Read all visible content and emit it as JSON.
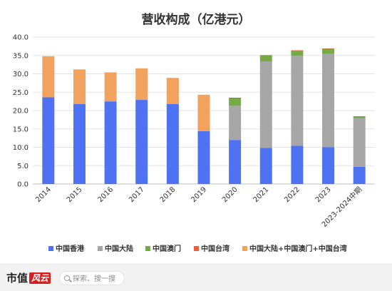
{
  "chart_data": {
    "type": "bar",
    "stacked": true,
    "title": "营收构成（亿港元）",
    "categories": [
      "2014",
      "2015",
      "2016",
      "2017",
      "2018",
      "2019",
      "2020",
      "2021",
      "2022",
      "2023",
      "2023-2024中期"
    ],
    "ylim": [
      0,
      40
    ],
    "yticks": [
      "0.0",
      "5.0",
      "10.0",
      "15.0",
      "20.0",
      "25.0",
      "30.0",
      "35.0",
      "40.0"
    ],
    "grid": true,
    "legend_position": "bottom",
    "series": [
      {
        "name": "中国香港",
        "color": "#4f72f2",
        "values": [
          23.6,
          21.8,
          22.5,
          22.9,
          21.8,
          14.4,
          12.0,
          9.8,
          10.4,
          10.0,
          4.7
        ]
      },
      {
        "name": "中国大陆",
        "color": "#a6a6a6",
        "values": [
          0,
          0,
          0,
          0,
          0,
          0,
          9.3,
          23.6,
          24.5,
          25.4,
          13.2
        ]
      },
      {
        "name": "中国澳门",
        "color": "#74ab42",
        "values": [
          0,
          0,
          0,
          0,
          0,
          0,
          2.0,
          1.6,
          1.4,
          1.4,
          0.5
        ]
      },
      {
        "name": "中国台湾",
        "color": "#ed5c34",
        "values": [
          0,
          0,
          0,
          0,
          0,
          0,
          0.2,
          0.1,
          0.1,
          0.1,
          0.05
        ]
      },
      {
        "name": "中国大陆+中国澳门+中国台湾",
        "color": "#f1a25e",
        "values": [
          11.2,
          9.4,
          7.9,
          8.6,
          7.1,
          9.9,
          0,
          0,
          0,
          0,
          0
        ]
      }
    ]
  },
  "footer": {
    "logo_text": "市值",
    "logo_badge": "风云",
    "search_icon": "搜",
    "search_placeholder": "探索、搜一搜"
  }
}
